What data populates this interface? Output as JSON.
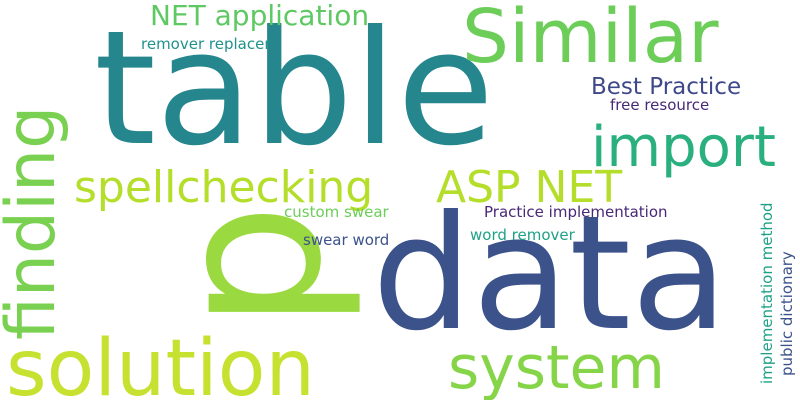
{
  "palette": {
    "teal": "#25868d",
    "navy": "#3b528b",
    "lime": "#a0da39",
    "green": "#7ad151",
    "mint": "#5ec962",
    "sea": "#2ab07f",
    "purple": "#482878",
    "teal_dark": "#21918c",
    "yellow_green": "#b5de2b",
    "emerald": "#1fa187",
    "slate": "#3e4989"
  },
  "words": [
    "table",
    "data",
    "p",
    "solution",
    "finding",
    "Similar",
    "system",
    "spellchecking",
    "ASP NET",
    "import",
    "NET application",
    "Best Practice",
    "remover replacer",
    "free resource",
    "custom swear",
    "Practice implementation",
    "swear word",
    "word remover",
    "implementation method",
    "public dictionary"
  ]
}
